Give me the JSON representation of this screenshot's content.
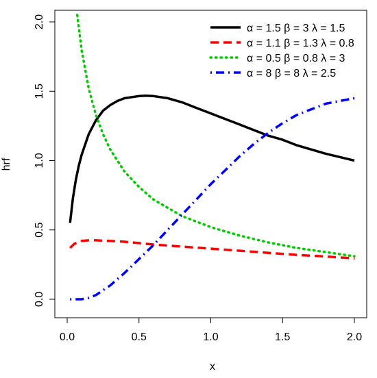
{
  "chart_data": {
    "type": "line",
    "title": "",
    "xlabel": "x",
    "ylabel": "hrf",
    "xlim": [
      0,
      2
    ],
    "ylim": [
      0,
      2
    ],
    "xticks": [
      {
        "value": 0.0,
        "label": "0.0"
      },
      {
        "value": 0.5,
        "label": "0.5"
      },
      {
        "value": 1.0,
        "label": "1.0"
      },
      {
        "value": 1.5,
        "label": "1.5"
      },
      {
        "value": 2.0,
        "label": "2.0"
      }
    ],
    "yticks": [
      {
        "value": 0.0,
        "label": "0.0"
      },
      {
        "value": 0.5,
        "label": "0.5"
      },
      {
        "value": 1.0,
        "label": "1.0"
      },
      {
        "value": 1.5,
        "label": "1.5"
      },
      {
        "value": 2.0,
        "label": "2.0"
      }
    ],
    "grid": false,
    "legend_position": "top-right",
    "series": [
      {
        "name": "α = 1.5  β = 3  λ = 1.5",
        "color": "#000000",
        "line_style": "solid",
        "x": [
          0.02,
          0.04,
          0.06,
          0.08,
          0.1,
          0.15,
          0.2,
          0.25,
          0.3,
          0.35,
          0.4,
          0.5,
          0.55,
          0.6,
          0.7,
          0.8,
          0.9,
          1.0,
          1.1,
          1.2,
          1.3,
          1.4,
          1.5,
          1.6,
          1.7,
          1.8,
          1.9,
          2.0
        ],
        "y": [
          0.55,
          0.73,
          0.86,
          0.96,
          1.04,
          1.19,
          1.29,
          1.36,
          1.4,
          1.43,
          1.45,
          1.465,
          1.468,
          1.465,
          1.45,
          1.42,
          1.38,
          1.34,
          1.3,
          1.26,
          1.22,
          1.18,
          1.15,
          1.11,
          1.08,
          1.05,
          1.025,
          1.0
        ]
      },
      {
        "name": "α = 1.1  β = 1.3  λ = 0.8",
        "color": "#ff0000",
        "line_style": "dashed",
        "x": [
          0.02,
          0.05,
          0.1,
          0.15,
          0.2,
          0.3,
          0.4,
          0.5,
          0.6,
          0.8,
          1.0,
          1.2,
          1.4,
          1.6,
          1.8,
          2.0
        ],
        "y": [
          0.37,
          0.4,
          0.42,
          0.425,
          0.425,
          0.42,
          0.415,
          0.405,
          0.395,
          0.38,
          0.365,
          0.35,
          0.335,
          0.32,
          0.308,
          0.295
        ]
      },
      {
        "name": "α = 0.5  β = 0.8  λ = 3",
        "color": "#00cc00",
        "line_style": "dotted",
        "x": [
          0.07,
          0.1,
          0.15,
          0.2,
          0.25,
          0.3,
          0.4,
          0.5,
          0.6,
          0.7,
          0.8,
          0.9,
          1.0,
          1.2,
          1.4,
          1.6,
          1.8,
          2.0
        ],
        "y": [
          2.05,
          1.8,
          1.52,
          1.33,
          1.19,
          1.08,
          0.92,
          0.81,
          0.72,
          0.66,
          0.6,
          0.56,
          0.52,
          0.46,
          0.41,
          0.37,
          0.34,
          0.31
        ]
      },
      {
        "name": "α = 8  β = 8  λ = 2.5",
        "color": "#0000ff",
        "line_style": "dotdash",
        "x": [
          0.02,
          0.1,
          0.15,
          0.2,
          0.3,
          0.4,
          0.5,
          0.6,
          0.7,
          0.8,
          0.9,
          1.0,
          1.1,
          1.2,
          1.3,
          1.4,
          1.5,
          1.6,
          1.7,
          1.8,
          1.9,
          2.0
        ],
        "y": [
          0.0,
          0.0,
          0.01,
          0.03,
          0.1,
          0.19,
          0.29,
          0.39,
          0.5,
          0.61,
          0.72,
          0.83,
          0.93,
          1.03,
          1.12,
          1.2,
          1.27,
          1.33,
          1.37,
          1.41,
          1.43,
          1.45
        ]
      }
    ]
  }
}
